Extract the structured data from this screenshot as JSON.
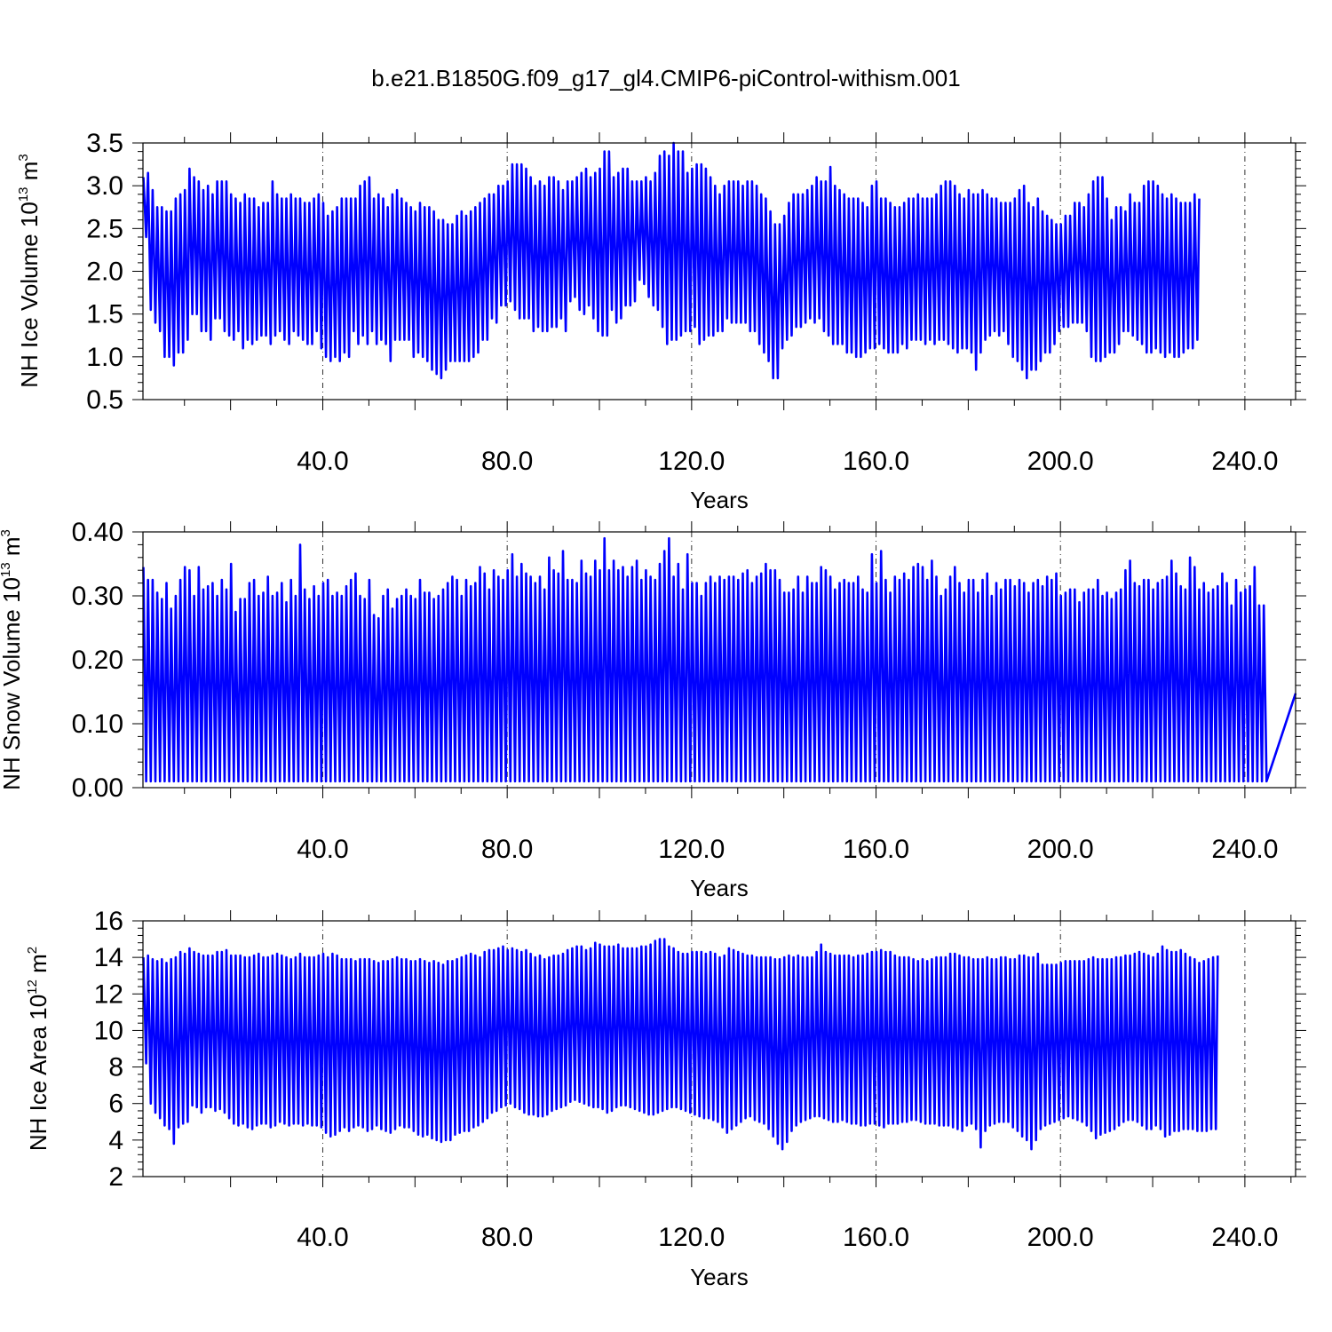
{
  "figure_title": "b.e21.B1850G.f09_g17_gl4.CMIP6-piControl-withism.001",
  "chart_data": [
    {
      "type": "line",
      "name": "ice-volume",
      "ylabel_main": "NH Ice Volume 10",
      "ylabel_exp": "13",
      "ylabel_unit": " m",
      "ylabel_unit_exp": "3",
      "xlabel": "Years",
      "xlim": [
        1,
        251
      ],
      "ylim": [
        0.5,
        3.5
      ],
      "xticks": [
        40,
        80,
        120,
        160,
        200,
        240
      ],
      "xtick_labels": [
        "40.0",
        "80.0",
        "120.0",
        "160.0",
        "200.0",
        "240.0"
      ],
      "yticks": [
        0.5,
        1.0,
        1.5,
        2.0,
        2.5,
        3.0,
        3.5
      ],
      "ytick_labels": [
        "0.5",
        "1.0",
        "1.5",
        "2.0",
        "2.5",
        "3.0",
        "3.5"
      ],
      "grid": "vertical-dashed",
      "color": "#0000ff",
      "cycle": "annual",
      "annual_max": [
        3.1,
        3.15,
        2.95,
        2.75,
        2.75,
        2.7,
        2.7,
        2.85,
        2.9,
        2.95,
        3.2,
        3.1,
        3.05,
        2.95,
        3.0,
        2.9,
        3.05,
        3.05,
        3.05,
        2.9,
        2.85,
        2.8,
        2.9,
        2.85,
        2.85,
        2.75,
        2.8,
        2.8,
        3.05,
        2.9,
        2.85,
        2.85,
        2.9,
        2.85,
        2.85,
        2.8,
        2.8,
        2.85,
        2.9,
        2.8,
        2.65,
        2.7,
        2.75,
        2.85,
        2.85,
        2.85,
        2.85,
        3.0,
        3.05,
        3.1,
        2.85,
        2.9,
        2.85,
        2.75,
        2.9,
        2.95,
        2.85,
        2.8,
        2.75,
        2.7,
        2.8,
        2.75,
        2.75,
        2.7,
        2.6,
        2.6,
        2.55,
        2.55,
        2.65,
        2.7,
        2.65,
        2.7,
        2.75,
        2.8,
        2.85,
        2.9,
        2.9,
        3.0,
        3.0,
        3.05,
        3.25,
        3.25,
        3.25,
        3.2,
        3.1,
        3.0,
        3.05,
        3.0,
        3.1,
        3.1,
        3.05,
        2.95,
        3.05,
        3.05,
        3.1,
        3.15,
        3.2,
        3.1,
        3.15,
        3.2,
        3.4,
        3.4,
        3.1,
        3.15,
        3.2,
        3.2,
        3.05,
        3.05,
        3.05,
        3.1,
        3.05,
        3.15,
        3.35,
        3.4,
        3.35,
        3.5,
        3.4,
        3.4,
        3.15,
        3.2,
        3.25,
        3.25,
        3.2,
        3.1,
        3.0,
        2.9,
        3.0,
        3.05,
        3.05,
        3.05,
        3.0,
        3.05,
        3.05,
        3.0,
        2.9,
        2.85,
        2.7,
        2.55,
        2.55,
        2.65,
        2.8,
        2.9,
        2.9,
        2.9,
        2.95,
        3.0,
        3.1,
        3.05,
        3.05,
        3.22,
        3.0,
        2.95,
        2.9,
        2.85,
        2.85,
        2.85,
        2.8,
        2.75,
        3.0,
        3.05,
        2.85,
        2.85,
        2.8,
        2.75,
        2.75,
        2.8,
        2.85,
        2.85,
        2.9,
        2.85,
        2.85,
        2.85,
        2.9,
        3.0,
        3.05,
        3.05,
        3.0,
        2.9,
        2.85,
        2.95,
        2.9,
        2.9,
        2.95,
        2.9,
        2.85,
        2.85,
        2.8,
        2.8,
        2.8,
        2.85,
        2.95,
        3.0,
        2.8,
        2.75,
        2.85,
        2.7,
        2.65,
        2.6,
        2.55,
        2.55,
        2.65,
        2.65,
        2.8,
        2.8,
        2.75,
        2.9,
        3.05,
        3.1,
        3.1,
        2.85,
        2.6,
        2.75,
        2.75,
        2.7,
        2.9,
        2.8,
        2.8,
        3.0,
        3.05,
        3.05,
        3.0,
        2.9,
        2.85,
        2.9,
        2.85,
        2.8,
        2.8,
        2.8,
        2.9,
        2.85,
        2.85,
        2.75,
        2.9,
        2.9,
        2.85
      ],
      "annual_min": [
        2.4,
        1.55,
        1.4,
        1.3,
        1.0,
        1.0,
        0.9,
        1.05,
        1.05,
        1.2,
        1.5,
        1.5,
        1.3,
        1.3,
        1.2,
        1.45,
        1.45,
        1.3,
        1.25,
        1.2,
        1.3,
        1.1,
        1.2,
        1.15,
        1.2,
        1.25,
        1.25,
        1.15,
        1.25,
        1.3,
        1.2,
        1.15,
        1.3,
        1.25,
        1.2,
        1.15,
        1.15,
        1.3,
        1.1,
        1.0,
        0.95,
        1.0,
        0.95,
        1.05,
        1.0,
        1.3,
        1.15,
        1.25,
        1.15,
        1.3,
        1.15,
        1.2,
        1.15,
        0.95,
        1.2,
        1.2,
        1.2,
        1.2,
        1.0,
        1.05,
        1.0,
        0.95,
        0.85,
        0.8,
        0.75,
        0.85,
        0.95,
        0.95,
        0.95,
        0.95,
        0.95,
        1.0,
        1.05,
        1.2,
        1.2,
        1.45,
        1.4,
        1.6,
        1.6,
        1.65,
        1.55,
        1.45,
        1.45,
        1.45,
        1.3,
        1.35,
        1.3,
        1.3,
        1.35,
        1.35,
        1.45,
        1.3,
        1.65,
        1.7,
        1.55,
        1.5,
        1.6,
        1.45,
        1.3,
        1.25,
        1.25,
        1.55,
        1.4,
        1.45,
        1.6,
        1.6,
        1.65,
        1.9,
        1.85,
        1.7,
        1.6,
        1.55,
        1.35,
        1.15,
        1.2,
        1.2,
        1.25,
        1.3,
        1.3,
        1.35,
        1.15,
        1.2,
        1.25,
        1.25,
        1.3,
        1.3,
        1.45,
        1.4,
        1.4,
        1.4,
        1.4,
        1.3,
        1.3,
        1.15,
        1.05,
        0.95,
        0.75,
        0.75,
        1.1,
        1.2,
        1.25,
        1.35,
        1.35,
        1.4,
        1.45,
        1.4,
        1.45,
        1.3,
        1.25,
        1.15,
        1.15,
        1.15,
        1.05,
        1.05,
        1.0,
        1.0,
        1.05,
        1.1,
        1.1,
        1.15,
        1.1,
        1.05,
        1.05,
        1.05,
        1.15,
        1.1,
        1.2,
        1.2,
        1.2,
        1.15,
        1.2,
        1.15,
        1.2,
        1.2,
        1.15,
        1.1,
        1.05,
        1.1,
        1.1,
        1.05,
        0.85,
        1.05,
        1.2,
        1.25,
        1.3,
        1.25,
        1.3,
        1.15,
        1.0,
        0.95,
        0.85,
        0.75,
        0.85,
        0.85,
        0.95,
        1.05,
        1.05,
        1.15,
        1.3,
        1.35,
        1.35,
        1.4,
        1.4,
        1.4,
        1.3,
        1.0,
        0.95,
        0.95,
        1.0,
        1.05,
        1.05,
        1.15,
        1.3,
        1.3,
        1.25,
        1.2,
        1.15,
        1.05,
        1.05,
        1.1,
        1.05,
        1.0,
        1.05,
        1.0,
        1.0,
        1.05,
        1.1,
        1.1,
        1.2
      ]
    },
    {
      "type": "line",
      "name": "snow-volume",
      "ylabel_main": "NH Snow Volume 10",
      "ylabel_exp": "13",
      "ylabel_unit": " m",
      "ylabel_unit_exp": "3",
      "xlabel": "Years",
      "xlim": [
        1,
        251
      ],
      "ylim": [
        0.0,
        0.4
      ],
      "xticks": [
        40,
        80,
        120,
        160,
        200,
        240
      ],
      "xtick_labels": [
        "40.0",
        "80.0",
        "120.0",
        "160.0",
        "200.0",
        "240.0"
      ],
      "yticks": [
        0.0,
        0.1,
        0.2,
        0.3,
        0.4
      ],
      "ytick_labels": [
        "0.00",
        "0.10",
        "0.20",
        "0.30",
        "0.40"
      ],
      "grid": "vertical-dashed",
      "color": "#0000ff",
      "cycle": "annual",
      "annual_max": [
        0.345,
        0.325,
        0.325,
        0.305,
        0.295,
        0.32,
        0.28,
        0.3,
        0.325,
        0.345,
        0.34,
        0.3,
        0.345,
        0.31,
        0.315,
        0.32,
        0.3,
        0.325,
        0.31,
        0.35,
        0.275,
        0.295,
        0.295,
        0.32,
        0.325,
        0.3,
        0.305,
        0.33,
        0.3,
        0.305,
        0.32,
        0.29,
        0.325,
        0.3,
        0.38,
        0.31,
        0.295,
        0.315,
        0.3,
        0.32,
        0.325,
        0.3,
        0.305,
        0.3,
        0.315,
        0.325,
        0.335,
        0.3,
        0.295,
        0.325,
        0.27,
        0.265,
        0.3,
        0.31,
        0.28,
        0.295,
        0.3,
        0.31,
        0.3,
        0.295,
        0.325,
        0.305,
        0.305,
        0.295,
        0.3,
        0.31,
        0.32,
        0.33,
        0.325,
        0.3,
        0.325,
        0.315,
        0.32,
        0.345,
        0.335,
        0.31,
        0.34,
        0.33,
        0.325,
        0.34,
        0.365,
        0.33,
        0.35,
        0.335,
        0.33,
        0.32,
        0.33,
        0.31,
        0.36,
        0.34,
        0.335,
        0.37,
        0.325,
        0.325,
        0.32,
        0.355,
        0.335,
        0.33,
        0.355,
        0.34,
        0.39,
        0.34,
        0.355,
        0.34,
        0.345,
        0.33,
        0.345,
        0.355,
        0.325,
        0.34,
        0.33,
        0.325,
        0.35,
        0.37,
        0.39,
        0.33,
        0.35,
        0.31,
        0.365,
        0.32,
        0.32,
        0.3,
        0.32,
        0.33,
        0.32,
        0.33,
        0.325,
        0.33,
        0.33,
        0.325,
        0.335,
        0.34,
        0.32,
        0.33,
        0.335,
        0.35,
        0.34,
        0.34,
        0.325,
        0.305,
        0.305,
        0.31,
        0.33,
        0.305,
        0.33,
        0.32,
        0.32,
        0.345,
        0.34,
        0.33,
        0.31,
        0.32,
        0.325,
        0.32,
        0.32,
        0.33,
        0.31,
        0.305,
        0.365,
        0.32,
        0.37,
        0.325,
        0.305,
        0.33,
        0.325,
        0.335,
        0.325,
        0.345,
        0.35,
        0.345,
        0.325,
        0.355,
        0.33,
        0.3,
        0.31,
        0.33,
        0.345,
        0.32,
        0.305,
        0.325,
        0.325,
        0.305,
        0.325,
        0.335,
        0.3,
        0.32,
        0.31,
        0.325,
        0.325,
        0.315,
        0.325,
        0.32,
        0.305,
        0.32,
        0.325,
        0.315,
        0.33,
        0.325,
        0.335,
        0.3,
        0.305,
        0.31,
        0.31,
        0.29,
        0.305,
        0.31,
        0.31,
        0.325,
        0.3,
        0.305,
        0.295,
        0.305,
        0.31,
        0.34,
        0.355,
        0.32,
        0.315,
        0.325,
        0.325,
        0.31,
        0.32,
        0.325,
        0.33,
        0.355,
        0.335,
        0.315,
        0.31,
        0.36,
        0.345,
        0.31,
        0.32,
        0.305,
        0.31,
        0.315,
        0.335,
        0.32,
        0.285,
        0.325,
        0.305,
        0.31,
        0.315,
        0.345,
        0.285,
        0.285
      ],
      "annual_min": [
        0.01
      ]
    },
    {
      "type": "line",
      "name": "ice-area",
      "ylabel_main": "NH Ice Area 10",
      "ylabel_exp": "12",
      "ylabel_unit": " m",
      "ylabel_unit_exp": "2",
      "xlabel": "Years",
      "xlim": [
        1,
        251
      ],
      "ylim": [
        2,
        16
      ],
      "xticks": [
        40,
        80,
        120,
        160,
        200,
        240
      ],
      "xtick_labels": [
        "40.0",
        "80.0",
        "120.0",
        "160.0",
        "200.0",
        "240.0"
      ],
      "yticks": [
        2,
        4,
        6,
        8,
        10,
        12,
        14,
        16
      ],
      "ytick_labels": [
        "2",
        "4",
        "6",
        "8",
        "10",
        "12",
        "14",
        "16"
      ],
      "grid": "vertical-dashed",
      "color": "#0000ff",
      "cycle": "annual",
      "annual_max": [
        14.0,
        14.1,
        13.9,
        13.8,
        13.9,
        13.7,
        13.9,
        14.0,
        14.3,
        14.2,
        14.5,
        14.3,
        14.2,
        14.1,
        14.1,
        14.1,
        14.3,
        14.3,
        14.4,
        14.1,
        14.1,
        14.1,
        14.0,
        14.0,
        14.1,
        14.2,
        14.0,
        14.0,
        14.1,
        14.2,
        14.1,
        14.0,
        13.9,
        14.0,
        14.2,
        14.0,
        14.0,
        14.0,
        14.1,
        14.2,
        14.0,
        14.2,
        14.1,
        13.9,
        13.9,
        13.9,
        13.8,
        13.9,
        13.9,
        13.9,
        13.8,
        13.7,
        13.8,
        13.8,
        13.9,
        14.0,
        13.9,
        13.9,
        13.8,
        13.8,
        13.9,
        13.8,
        13.7,
        13.8,
        13.7,
        13.6,
        13.8,
        13.8,
        13.9,
        14.0,
        14.1,
        14.2,
        14.1,
        14.0,
        14.3,
        14.4,
        14.4,
        14.5,
        14.6,
        14.4,
        14.5,
        14.4,
        14.3,
        14.4,
        14.2,
        14.0,
        14.1,
        13.9,
        14.0,
        14.1,
        14.1,
        14.2,
        14.4,
        14.5,
        14.6,
        14.6,
        14.4,
        14.5,
        14.8,
        14.7,
        14.6,
        14.6,
        14.6,
        14.7,
        14.5,
        14.5,
        14.5,
        14.5,
        14.6,
        14.6,
        14.7,
        14.9,
        15.0,
        15.0,
        14.6,
        14.5,
        14.3,
        14.2,
        14.2,
        14.3,
        14.3,
        14.3,
        14.2,
        14.3,
        14.2,
        14.0,
        14.1,
        14.5,
        14.4,
        14.3,
        14.2,
        14.1,
        14.1,
        14.0,
        14.0,
        14.0,
        14.0,
        13.9,
        13.9,
        14.0,
        14.1,
        14.0,
        14.1,
        14.0,
        14.0,
        14.0,
        14.3,
        14.7,
        14.3,
        14.2,
        14.1,
        14.1,
        14.1,
        14.1,
        14.0,
        14.1,
        14.1,
        14.2,
        14.3,
        14.3,
        14.4,
        14.3,
        14.3,
        14.1,
        14.0,
        14.0,
        14.0,
        13.9,
        13.8,
        13.9,
        13.8,
        13.9,
        14.0,
        14.0,
        14.0,
        14.2,
        14.2,
        14.1,
        14.0,
        14.0,
        13.9,
        13.9,
        13.9,
        14.0,
        13.9,
        13.9,
        14.0,
        14.0,
        13.9,
        13.9,
        14.1,
        14.1,
        14.0,
        14.0,
        14.2,
        13.6,
        13.6,
        13.6,
        13.6,
        13.7,
        13.8,
        13.8,
        13.8,
        13.8,
        13.8,
        13.9,
        14.0,
        13.9,
        13.9,
        13.9,
        13.9,
        14.0,
        14.0,
        14.1,
        14.1,
        14.2,
        14.3,
        14.2,
        14.1,
        14.0,
        14.2,
        14.6,
        14.4,
        14.3,
        14.3,
        14.4,
        14.2,
        14.0,
        13.9,
        13.7,
        13.8,
        13.9,
        14.0,
        14.1,
        14.0,
        14.0,
        13.9,
        13.8,
        13.9,
        14.0,
        13.9,
        13.9,
        13.8,
        13.8,
        13.8
      ],
      "annual_min": [
        8.2,
        6.0,
        5.5,
        5.2,
        4.8,
        4.6,
        3.8,
        4.7,
        4.9,
        5.0,
        5.9,
        5.8,
        5.5,
        5.8,
        5.8,
        5.6,
        5.7,
        5.5,
        5.2,
        4.9,
        4.8,
        4.9,
        4.7,
        4.6,
        4.8,
        4.9,
        4.9,
        4.7,
        4.8,
        5.0,
        4.9,
        4.8,
        4.9,
        4.9,
        4.8,
        4.9,
        4.8,
        4.8,
        4.7,
        4.4,
        4.2,
        4.3,
        4.5,
        4.7,
        4.5,
        4.7,
        4.8,
        4.7,
        4.5,
        4.6,
        4.8,
        4.6,
        4.5,
        4.4,
        4.6,
        4.8,
        4.7,
        4.7,
        4.5,
        4.3,
        4.2,
        4.3,
        4.1,
        4.0,
        3.9,
        4.0,
        4.0,
        4.3,
        4.4,
        4.5,
        4.5,
        4.7,
        4.8,
        5.0,
        5.2,
        5.5,
        5.6,
        5.8,
        5.9,
        6.0,
        5.8,
        5.7,
        5.5,
        5.4,
        5.4,
        5.3,
        5.3,
        5.4,
        5.6,
        5.7,
        5.8,
        5.9,
        6.1,
        6.2,
        6.1,
        6.0,
        5.9,
        5.8,
        5.8,
        5.7,
        5.5,
        5.6,
        5.8,
        5.9,
        5.9,
        5.8,
        5.7,
        5.6,
        5.5,
        5.4,
        5.4,
        5.5,
        5.6,
        5.7,
        5.8,
        5.8,
        5.7,
        5.6,
        5.5,
        5.4,
        5.3,
        5.2,
        5.2,
        5.1,
        5.0,
        4.7,
        4.4,
        4.6,
        4.8,
        5.0,
        5.2,
        5.3,
        5.1,
        5.0,
        4.9,
        4.6,
        4.2,
        3.8,
        3.5,
        3.9,
        4.5,
        4.8,
        5.0,
        5.1,
        5.2,
        5.3,
        5.3,
        5.2,
        5.1,
        5.0,
        5.0,
        5.1,
        5.0,
        4.9,
        4.9,
        4.8,
        4.8,
        4.9,
        4.9,
        4.8,
        4.7,
        4.9,
        4.9,
        4.9,
        5.0,
        5.0,
        5.1,
        5.1,
        5.0,
        4.9,
        4.9,
        4.9,
        4.8,
        4.8,
        4.8,
        4.7,
        4.6,
        4.5,
        4.8,
        4.9,
        4.6,
        3.6,
        4.5,
        4.8,
        4.9,
        5.0,
        5.0,
        5.0,
        4.7,
        4.5,
        4.2,
        4.0,
        3.5,
        4.0,
        4.6,
        4.8,
        4.9,
        5.0,
        5.1,
        5.2,
        5.3,
        5.2,
        5.1,
        5.0,
        4.8,
        4.5,
        4.1,
        4.3,
        4.4,
        4.5,
        4.6,
        4.8,
        5.0,
        5.1,
        5.1,
        5.0,
        4.8,
        4.6,
        4.6,
        4.8,
        4.6,
        4.2,
        4.3,
        4.5,
        4.5,
        4.6,
        4.6,
        4.6,
        4.5,
        4.5,
        4.5,
        4.6,
        4.6
      ]
    }
  ]
}
